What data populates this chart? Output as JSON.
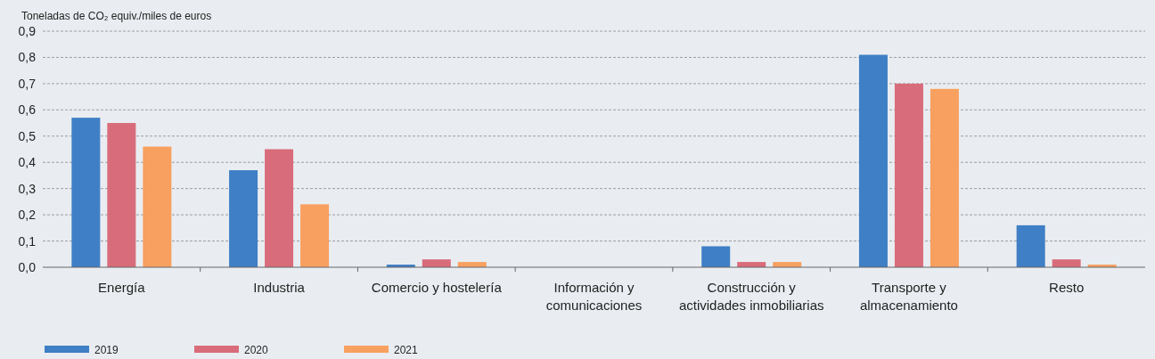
{
  "chart_data": {
    "type": "bar",
    "ylabel": "Toneladas de CO₂ equiv./miles de euros",
    "categories": [
      "Energía",
      "Industria",
      "Comercio y hostelería",
      "Información y comunicaciones",
      "Construcción y actividades inmobiliarias",
      "Transporte y almacenamiento",
      "Resto"
    ],
    "series": [
      {
        "name": "2019",
        "color": "#3f7fc5",
        "values": [
          0.57,
          0.37,
          0.01,
          0,
          0.08,
          0.81,
          0.16
        ]
      },
      {
        "name": "2020",
        "color": "#d96c7a",
        "values": [
          0.55,
          0.45,
          0.03,
          0,
          0.02,
          0.7,
          0.03
        ]
      },
      {
        "name": "2021",
        "color": "#f8a060",
        "values": [
          0.46,
          0.24,
          0.02,
          0,
          0.02,
          0.68,
          0.01
        ]
      }
    ],
    "ylim": [
      0,
      0.9
    ],
    "yticks": [
      {
        "value": 0,
        "label": "0,0"
      },
      {
        "value": 0.1,
        "label": "0,1"
      },
      {
        "value": 0.2,
        "label": "0,2"
      },
      {
        "value": 0.3,
        "label": "0,3"
      },
      {
        "value": 0.4,
        "label": "0,4"
      },
      {
        "value": 0.5,
        "label": "0,5"
      },
      {
        "value": 0.6,
        "label": "0,6"
      },
      {
        "value": 0.7,
        "label": "0,7"
      },
      {
        "value": 0.8,
        "label": "0,8"
      },
      {
        "value": 0.9,
        "label": "0,9"
      }
    ],
    "grid": "y",
    "legend": "bottom"
  }
}
